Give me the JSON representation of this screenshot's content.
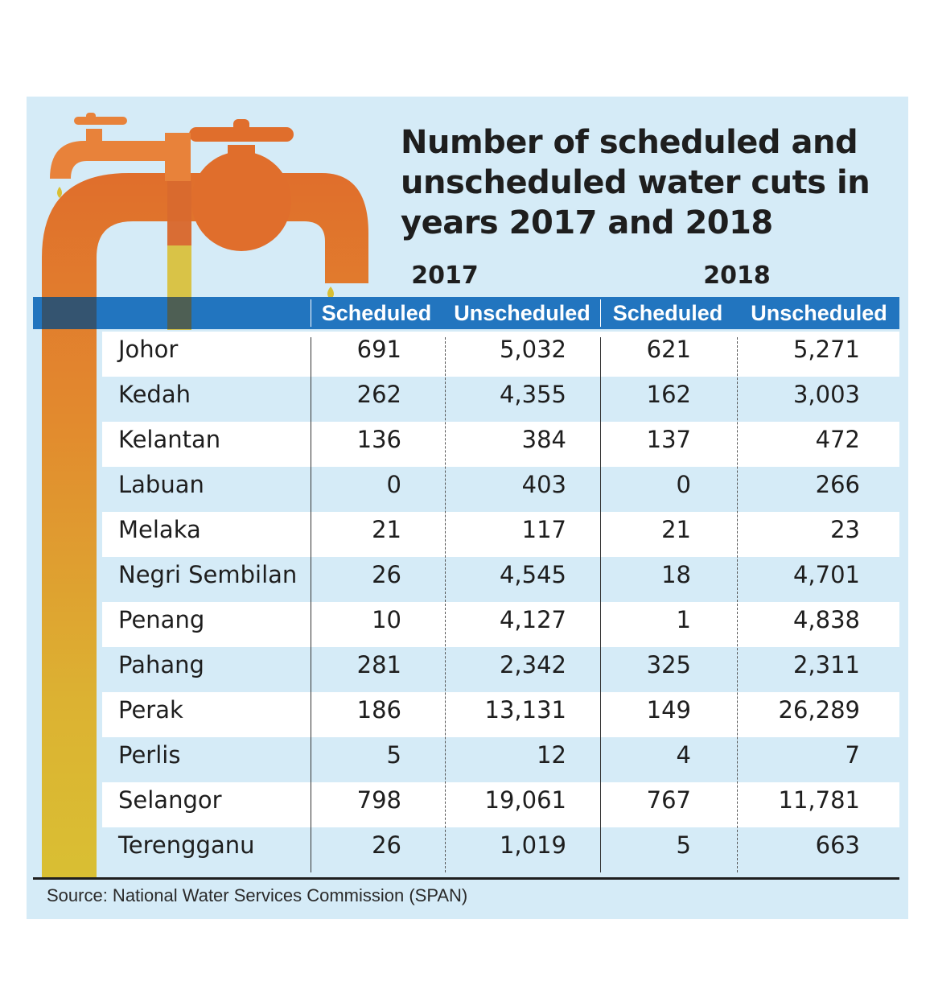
{
  "chart_data": {
    "type": "table",
    "title": "Number of scheduled and unscheduled water cuts in years 2017 and 2018",
    "year_groups": [
      "2017",
      "2018"
    ],
    "columns": [
      "Scheduled",
      "Unscheduled",
      "Scheduled",
      "Unscheduled"
    ],
    "rows": [
      {
        "state": "Johor",
        "values": [
          "691",
          "5,032",
          "621",
          "5,271"
        ]
      },
      {
        "state": "Kedah",
        "values": [
          "262",
          "4,355",
          "162",
          "3,003"
        ]
      },
      {
        "state": "Kelantan",
        "values": [
          "136",
          "384",
          "137",
          "472"
        ]
      },
      {
        "state": "Labuan",
        "values": [
          "0",
          "403",
          "0",
          "266"
        ]
      },
      {
        "state": "Melaka",
        "values": [
          "21",
          "117",
          "21",
          "23"
        ]
      },
      {
        "state": "Negri Sembilan",
        "values": [
          "26",
          "4,545",
          "18",
          "4,701"
        ]
      },
      {
        "state": "Penang",
        "values": [
          "10",
          "4,127",
          "1",
          "4,838"
        ]
      },
      {
        "state": "Pahang",
        "values": [
          "281",
          "2,342",
          "325",
          "2,311"
        ]
      },
      {
        "state": "Perak",
        "values": [
          "186",
          "13,131",
          "149",
          "26,289"
        ]
      },
      {
        "state": "Perlis",
        "values": [
          "5",
          "12",
          "4",
          "7"
        ]
      },
      {
        "state": "Selangor",
        "values": [
          "798",
          "19,061",
          "767",
          "11,781"
        ]
      },
      {
        "state": "Terengganu",
        "values": [
          "26",
          "1,019",
          "5",
          "663"
        ]
      }
    ],
    "source": "Source: National Water Services Commission (SPAN)"
  },
  "colors": {
    "panel": "#d5ebf7",
    "header": "#2275bf",
    "faucet": "#e06e2c",
    "water": "#d9bf33"
  },
  "icons": [
    "faucet-icon",
    "water-drop-icon"
  ]
}
